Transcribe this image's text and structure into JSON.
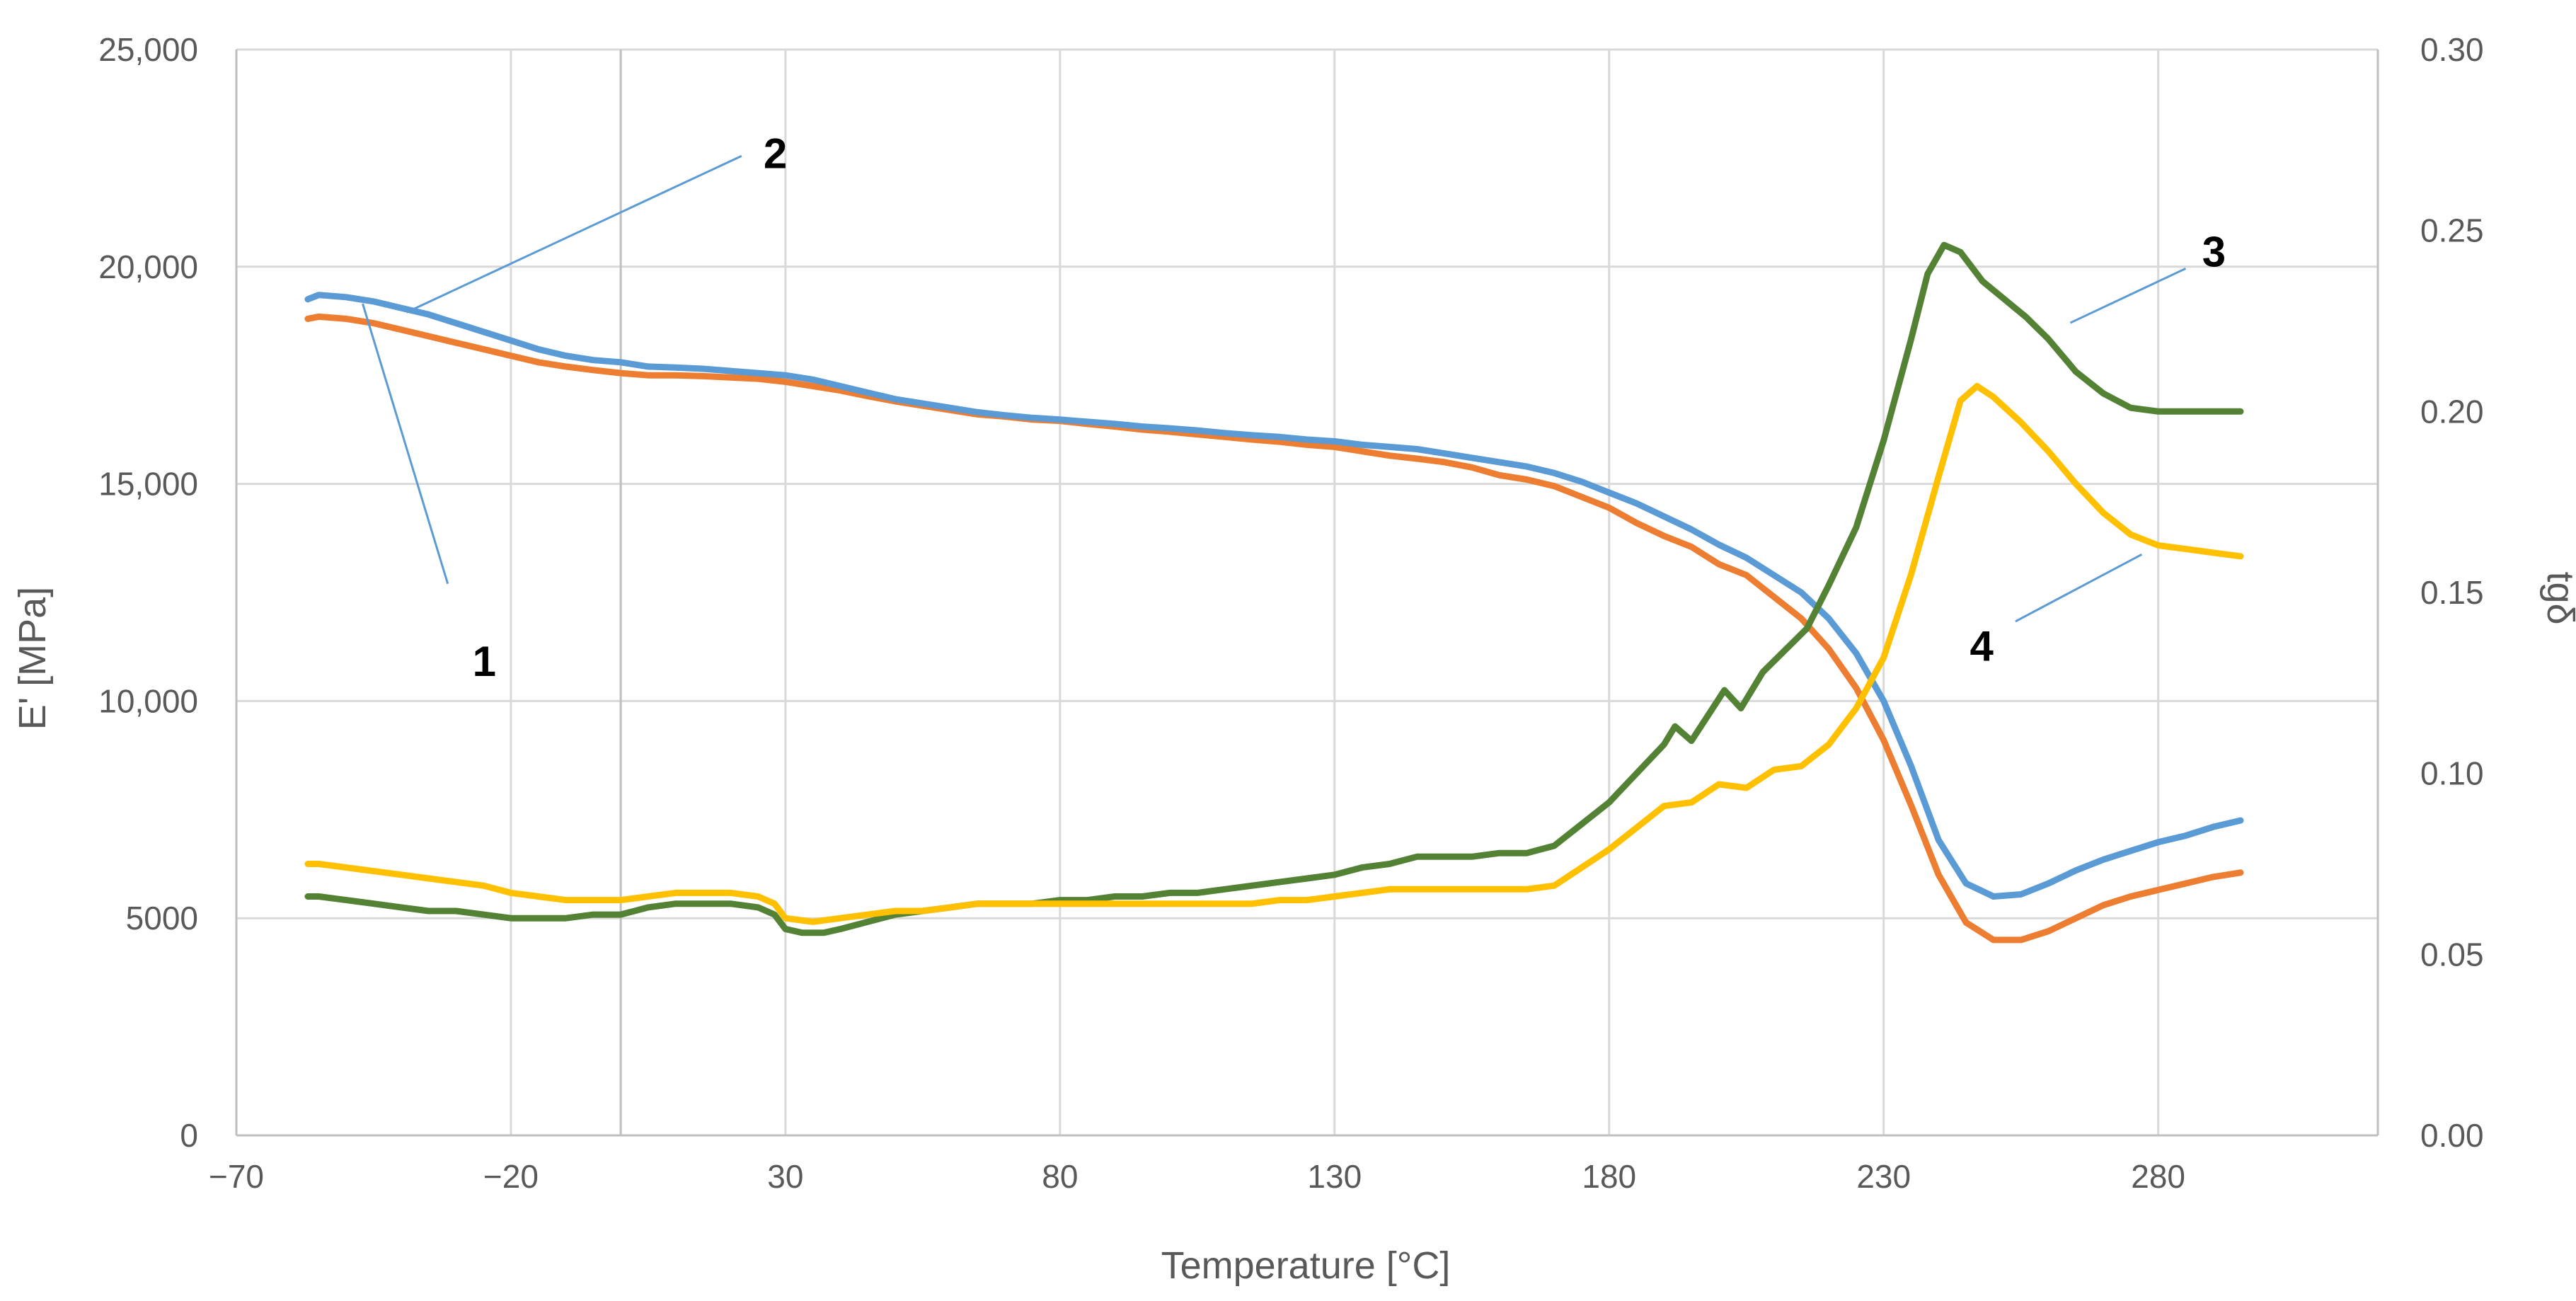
{
  "chart_data": {
    "type": "line",
    "title": "",
    "xlabel": "Temperature [°C]",
    "ylabel": "E' [MPa]",
    "y2label": "tgδ",
    "xlim": [
      -70,
      320
    ],
    "ylim": [
      0,
      25000
    ],
    "y2lim": [
      0,
      0.3
    ],
    "x_ticks": [
      -70,
      -20,
      30,
      80,
      130,
      180,
      230,
      280
    ],
    "x_tick_labels": [
      "−70",
      "−20",
      "30",
      "80",
      "130",
      "180",
      "230",
      "280"
    ],
    "y_ticks": [
      0,
      5000,
      10000,
      15000,
      20000,
      25000
    ],
    "y_tick_labels": [
      "0",
      "5000",
      "10,000",
      "15,000",
      "20,000",
      "25,000"
    ],
    "y2_ticks": [
      0,
      0.05,
      0.1,
      0.15,
      0.2,
      0.25,
      0.3
    ],
    "y2_tick_labels": [
      "0.00",
      "0.05",
      "0.10",
      "0.15",
      "0.20",
      "0.25",
      "0.30"
    ],
    "grid": true,
    "series": [
      {
        "name": "1",
        "axis": "left",
        "color": "#ed7d31",
        "points": [
          [
            -57,
            18800
          ],
          [
            -55,
            18850
          ],
          [
            -50,
            18800
          ],
          [
            -45,
            18700
          ],
          [
            -40,
            18550
          ],
          [
            -35,
            18400
          ],
          [
            -30,
            18250
          ],
          [
            -25,
            18100
          ],
          [
            -20,
            17950
          ],
          [
            -15,
            17800
          ],
          [
            -10,
            17700
          ],
          [
            -5,
            17620
          ],
          [
            0,
            17550
          ],
          [
            5,
            17500
          ],
          [
            10,
            17500
          ],
          [
            15,
            17480
          ],
          [
            20,
            17450
          ],
          [
            25,
            17420
          ],
          [
            30,
            17350
          ],
          [
            35,
            17250
          ],
          [
            40,
            17150
          ],
          [
            45,
            17020
          ],
          [
            50,
            16900
          ],
          [
            55,
            16800
          ],
          [
            60,
            16700
          ],
          [
            65,
            16600
          ],
          [
            70,
            16550
          ],
          [
            75,
            16480
          ],
          [
            80,
            16450
          ],
          [
            85,
            16380
          ],
          [
            90,
            16320
          ],
          [
            95,
            16250
          ],
          [
            100,
            16200
          ],
          [
            105,
            16140
          ],
          [
            110,
            16080
          ],
          [
            115,
            16020
          ],
          [
            120,
            15970
          ],
          [
            125,
            15900
          ],
          [
            130,
            15850
          ],
          [
            135,
            15750
          ],
          [
            140,
            15650
          ],
          [
            145,
            15580
          ],
          [
            150,
            15500
          ],
          [
            155,
            15380
          ],
          [
            160,
            15200
          ],
          [
            165,
            15100
          ],
          [
            170,
            14950
          ],
          [
            175,
            14700
          ],
          [
            180,
            14450
          ],
          [
            185,
            14100
          ],
          [
            190,
            13800
          ],
          [
            195,
            13550
          ],
          [
            200,
            13150
          ],
          [
            205,
            12900
          ],
          [
            210,
            12400
          ],
          [
            215,
            11900
          ],
          [
            220,
            11200
          ],
          [
            225,
            10300
          ],
          [
            230,
            9100
          ],
          [
            235,
            7600
          ],
          [
            240,
            6000
          ],
          [
            245,
            4900
          ],
          [
            250,
            4500
          ],
          [
            255,
            4500
          ],
          [
            260,
            4700
          ],
          [
            265,
            5000
          ],
          [
            270,
            5300
          ],
          [
            275,
            5500
          ],
          [
            280,
            5650
          ],
          [
            285,
            5800
          ],
          [
            290,
            5950
          ],
          [
            295,
            6050
          ]
        ]
      },
      {
        "name": "2",
        "axis": "left",
        "color": "#5b9bd5",
        "points": [
          [
            -57,
            19250
          ],
          [
            -55,
            19350
          ],
          [
            -50,
            19300
          ],
          [
            -45,
            19200
          ],
          [
            -40,
            19050
          ],
          [
            -35,
            18900
          ],
          [
            -30,
            18700
          ],
          [
            -25,
            18500
          ],
          [
            -20,
            18300
          ],
          [
            -15,
            18100
          ],
          [
            -10,
            17950
          ],
          [
            -5,
            17850
          ],
          [
            0,
            17800
          ],
          [
            5,
            17700
          ],
          [
            10,
            17680
          ],
          [
            15,
            17650
          ],
          [
            20,
            17600
          ],
          [
            25,
            17550
          ],
          [
            30,
            17500
          ],
          [
            35,
            17400
          ],
          [
            40,
            17250
          ],
          [
            45,
            17100
          ],
          [
            50,
            16950
          ],
          [
            55,
            16850
          ],
          [
            60,
            16750
          ],
          [
            65,
            16650
          ],
          [
            70,
            16580
          ],
          [
            75,
            16520
          ],
          [
            80,
            16480
          ],
          [
            85,
            16430
          ],
          [
            90,
            16380
          ],
          [
            95,
            16320
          ],
          [
            100,
            16280
          ],
          [
            105,
            16230
          ],
          [
            110,
            16170
          ],
          [
            115,
            16120
          ],
          [
            120,
            16080
          ],
          [
            125,
            16020
          ],
          [
            130,
            15980
          ],
          [
            135,
            15900
          ],
          [
            140,
            15850
          ],
          [
            145,
            15800
          ],
          [
            150,
            15700
          ],
          [
            155,
            15600
          ],
          [
            160,
            15500
          ],
          [
            165,
            15400
          ],
          [
            170,
            15250
          ],
          [
            175,
            15050
          ],
          [
            180,
            14800
          ],
          [
            185,
            14550
          ],
          [
            190,
            14250
          ],
          [
            195,
            13950
          ],
          [
            200,
            13600
          ],
          [
            205,
            13300
          ],
          [
            210,
            12900
          ],
          [
            215,
            12500
          ],
          [
            220,
            11900
          ],
          [
            225,
            11100
          ],
          [
            230,
            10000
          ],
          [
            235,
            8500
          ],
          [
            240,
            6800
          ],
          [
            245,
            5800
          ],
          [
            250,
            5500
          ],
          [
            255,
            5550
          ],
          [
            260,
            5800
          ],
          [
            265,
            6100
          ],
          [
            270,
            6350
          ],
          [
            275,
            6550
          ],
          [
            280,
            6750
          ],
          [
            285,
            6900
          ],
          [
            290,
            7100
          ],
          [
            295,
            7250
          ]
        ]
      },
      {
        "name": "3",
        "axis": "right",
        "color": "#548235",
        "points": [
          [
            -57,
            0.066
          ],
          [
            -55,
            0.066
          ],
          [
            -50,
            0.065
          ],
          [
            -45,
            0.064
          ],
          [
            -40,
            0.063
          ],
          [
            -35,
            0.062
          ],
          [
            -30,
            0.062
          ],
          [
            -25,
            0.061
          ],
          [
            -20,
            0.06
          ],
          [
            -15,
            0.06
          ],
          [
            -10,
            0.06
          ],
          [
            -5,
            0.061
          ],
          [
            0,
            0.061
          ],
          [
            5,
            0.063
          ],
          [
            10,
            0.064
          ],
          [
            15,
            0.064
          ],
          [
            20,
            0.064
          ],
          [
            25,
            0.063
          ],
          [
            28,
            0.061
          ],
          [
            30,
            0.057
          ],
          [
            33,
            0.056
          ],
          [
            37,
            0.056
          ],
          [
            40,
            0.057
          ],
          [
            45,
            0.059
          ],
          [
            50,
            0.061
          ],
          [
            55,
            0.062
          ],
          [
            60,
            0.063
          ],
          [
            65,
            0.064
          ],
          [
            70,
            0.064
          ],
          [
            75,
            0.064
          ],
          [
            80,
            0.065
          ],
          [
            85,
            0.065
          ],
          [
            90,
            0.066
          ],
          [
            95,
            0.066
          ],
          [
            100,
            0.067
          ],
          [
            105,
            0.067
          ],
          [
            110,
            0.068
          ],
          [
            115,
            0.069
          ],
          [
            120,
            0.07
          ],
          [
            125,
            0.071
          ],
          [
            130,
            0.072
          ],
          [
            135,
            0.074
          ],
          [
            140,
            0.075
          ],
          [
            145,
            0.077
          ],
          [
            150,
            0.077
          ],
          [
            155,
            0.077
          ],
          [
            160,
            0.078
          ],
          [
            165,
            0.078
          ],
          [
            170,
            0.08
          ],
          [
            175,
            0.086
          ],
          [
            180,
            0.092
          ],
          [
            185,
            0.1
          ],
          [
            190,
            0.108
          ],
          [
            192,
            0.113
          ],
          [
            195,
            0.109
          ],
          [
            198,
            0.116
          ],
          [
            201,
            0.123
          ],
          [
            204,
            0.118
          ],
          [
            208,
            0.128
          ],
          [
            212,
            0.134
          ],
          [
            216,
            0.14
          ],
          [
            220,
            0.152
          ],
          [
            225,
            0.168
          ],
          [
            230,
            0.192
          ],
          [
            235,
            0.22
          ],
          [
            238,
            0.238
          ],
          [
            241,
            0.246
          ],
          [
            244,
            0.244
          ],
          [
            248,
            0.236
          ],
          [
            252,
            0.231
          ],
          [
            256,
            0.226
          ],
          [
            260,
            0.22
          ],
          [
            265,
            0.211
          ],
          [
            270,
            0.205
          ],
          [
            275,
            0.201
          ],
          [
            280,
            0.2
          ],
          [
            285,
            0.2
          ],
          [
            290,
            0.2
          ],
          [
            295,
            0.2
          ]
        ]
      },
      {
        "name": "4",
        "axis": "right",
        "color": "#ffc000",
        "points": [
          [
            -57,
            0.075
          ],
          [
            -55,
            0.075
          ],
          [
            -50,
            0.074
          ],
          [
            -45,
            0.073
          ],
          [
            -40,
            0.072
          ],
          [
            -35,
            0.071
          ],
          [
            -30,
            0.07
          ],
          [
            -25,
            0.069
          ],
          [
            -20,
            0.067
          ],
          [
            -15,
            0.066
          ],
          [
            -10,
            0.065
          ],
          [
            -5,
            0.065
          ],
          [
            0,
            0.065
          ],
          [
            5,
            0.066
          ],
          [
            10,
            0.067
          ],
          [
            15,
            0.067
          ],
          [
            20,
            0.067
          ],
          [
            25,
            0.066
          ],
          [
            28,
            0.064
          ],
          [
            30,
            0.06
          ],
          [
            35,
            0.059
          ],
          [
            40,
            0.06
          ],
          [
            45,
            0.061
          ],
          [
            50,
            0.062
          ],
          [
            55,
            0.062
          ],
          [
            60,
            0.063
          ],
          [
            65,
            0.064
          ],
          [
            70,
            0.064
          ],
          [
            75,
            0.064
          ],
          [
            80,
            0.064
          ],
          [
            85,
            0.064
          ],
          [
            90,
            0.064
          ],
          [
            95,
            0.064
          ],
          [
            100,
            0.064
          ],
          [
            105,
            0.064
          ],
          [
            110,
            0.064
          ],
          [
            115,
            0.064
          ],
          [
            120,
            0.065
          ],
          [
            125,
            0.065
          ],
          [
            130,
            0.066
          ],
          [
            135,
            0.067
          ],
          [
            140,
            0.068
          ],
          [
            145,
            0.068
          ],
          [
            150,
            0.068
          ],
          [
            155,
            0.068
          ],
          [
            160,
            0.068
          ],
          [
            165,
            0.068
          ],
          [
            170,
            0.069
          ],
          [
            175,
            0.074
          ],
          [
            180,
            0.079
          ],
          [
            185,
            0.085
          ],
          [
            190,
            0.091
          ],
          [
            195,
            0.092
          ],
          [
            200,
            0.097
          ],
          [
            205,
            0.096
          ],
          [
            210,
            0.101
          ],
          [
            215,
            0.102
          ],
          [
            220,
            0.108
          ],
          [
            225,
            0.118
          ],
          [
            230,
            0.132
          ],
          [
            235,
            0.155
          ],
          [
            240,
            0.182
          ],
          [
            244,
            0.203
          ],
          [
            247,
            0.207
          ],
          [
            250,
            0.204
          ],
          [
            255,
            0.197
          ],
          [
            260,
            0.189
          ],
          [
            265,
            0.18
          ],
          [
            270,
            0.172
          ],
          [
            275,
            0.166
          ],
          [
            280,
            0.163
          ],
          [
            285,
            0.162
          ],
          [
            290,
            0.161
          ],
          [
            295,
            0.16
          ]
        ]
      }
    ],
    "annotations": [
      {
        "label": "1",
        "tx": -47,
        "ty": 19150,
        "lx": -31.5,
        "ly": 12700,
        "textx": -27,
        "texty": 10900,
        "text_anchor": "start"
      },
      {
        "label": "2",
        "tx": -39,
        "ty": 18950,
        "lx": 22,
        "ly": 22550,
        "textx": 26,
        "texty": 22600,
        "text_anchor": "start"
      },
      {
        "label": "3",
        "tx": 264,
        "ty": 0.2245,
        "lx": 285,
        "ly": 0.2395,
        "textx": 288,
        "texty": 0.244,
        "text_anchor": "start"
      },
      {
        "label": "4",
        "tx": 277,
        "ty": 0.1605,
        "lx": 254,
        "ly": 0.142,
        "textx": 250,
        "texty": 0.135,
        "text_anchor": "end"
      }
    ]
  }
}
